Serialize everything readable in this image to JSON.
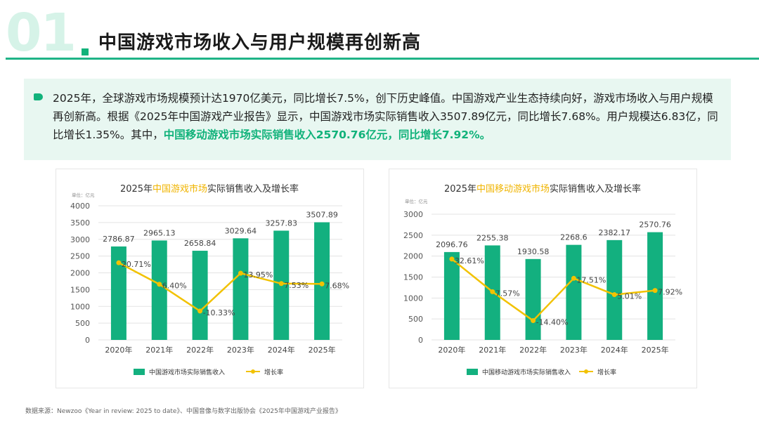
{
  "header": {
    "number": "01",
    "title": "中国游戏市场收入与用户规模再创新高"
  },
  "intro": {
    "text": "2025年，全球游戏市场规模预计达1970亿美元，同比增长7.5%，创下历史峰值。中国游戏产业生态持续向好，游戏市场收入与用户规模再创新高。根据《2025年中国游戏产业报告》显示，中国游戏市场实际销售收入3507.89亿元，同比增长7.68%。用户规模达6.83亿，同比增长1.35%。其中，",
    "highlight": "中国移动游戏市场实际销售收入2570.76亿元，同比增长7.92%。"
  },
  "source": "数据来源：Newzoo《Year in review: 2025 to date》、中国音像与数字出版协会《2025年中国游戏产业报告》",
  "colors": {
    "accent": "#10b27a",
    "bar": "#13b07f",
    "line": "#f2c200",
    "title_highlight": "#f0b400",
    "intro_bg": "#e8f7f1"
  },
  "chart_data": [
    {
      "type": "bar",
      "title_prefix": "2025年",
      "title_highlight": "中国游戏市场",
      "title_suffix": "实际销售收入及增长率",
      "unit": "单位：亿元",
      "categories": [
        "2020年",
        "2021年",
        "2022年",
        "2023年",
        "2024年",
        "2025年"
      ],
      "ylim": [
        0,
        4000
      ],
      "yticks": [
        "0",
        "500",
        "1000",
        "1500",
        "2000",
        "2500",
        "3000",
        "3500",
        "4000"
      ],
      "series": [
        {
          "name": "中国游戏市场实际销售收入",
          "kind": "bar",
          "values": [
            2786.87,
            2965.13,
            2658.84,
            3029.64,
            3257.83,
            3507.89
          ],
          "labels": [
            "2786.87",
            "2965.13",
            "2658.84",
            "3029.64",
            "3257.83",
            "3507.89"
          ]
        },
        {
          "name": "增长率",
          "kind": "line",
          "values": [
            20.71,
            6.4,
            -10.33,
            13.95,
            7.53,
            7.68
          ],
          "labels": [
            "20.71%",
            "6.40%",
            "-10.33%",
            "13.95%",
            "7.53%",
            "7.68%"
          ],
          "plot_positions": [
            2300,
            1660,
            860,
            1990,
            1680,
            1670
          ]
        }
      ],
      "legend": [
        "中国游戏市场实际销售收入",
        "增长率"
      ]
    },
    {
      "type": "bar",
      "title_prefix": "2025年",
      "title_highlight": "中国移动游戏市场",
      "title_suffix": "实际销售收入及增长率",
      "unit": "单位：亿元",
      "categories": [
        "2020年",
        "2021年",
        "2022年",
        "2023年",
        "2024年",
        "2025年"
      ],
      "ylim": [
        0,
        3000
      ],
      "yticks": [
        "0",
        "500",
        "1000",
        "1500",
        "2000",
        "2500",
        "3000"
      ],
      "series": [
        {
          "name": "中国移动游戏市场实际销售收入",
          "kind": "bar",
          "values": [
            2096.76,
            2255.38,
            1930.58,
            2268.6,
            2382.17,
            2570.76
          ],
          "labels": [
            "2096.76",
            "2255.38",
            "1930.58",
            "2268.6",
            "2382.17",
            "2570.76"
          ]
        },
        {
          "name": "增长率",
          "kind": "line",
          "values": [
            32.61,
            7.57,
            -14.4,
            17.51,
            5.01,
            7.92
          ],
          "labels": [
            "32.61%",
            "7.57%",
            "-14.40%",
            "17.51%",
            "5.01%",
            "7.92%"
          ],
          "plot_positions": [
            1930,
            1150,
            460,
            1470,
            1080,
            1180
          ]
        }
      ],
      "legend": [
        "中国移动游戏市场实际销售收入",
        "增长率"
      ]
    }
  ]
}
